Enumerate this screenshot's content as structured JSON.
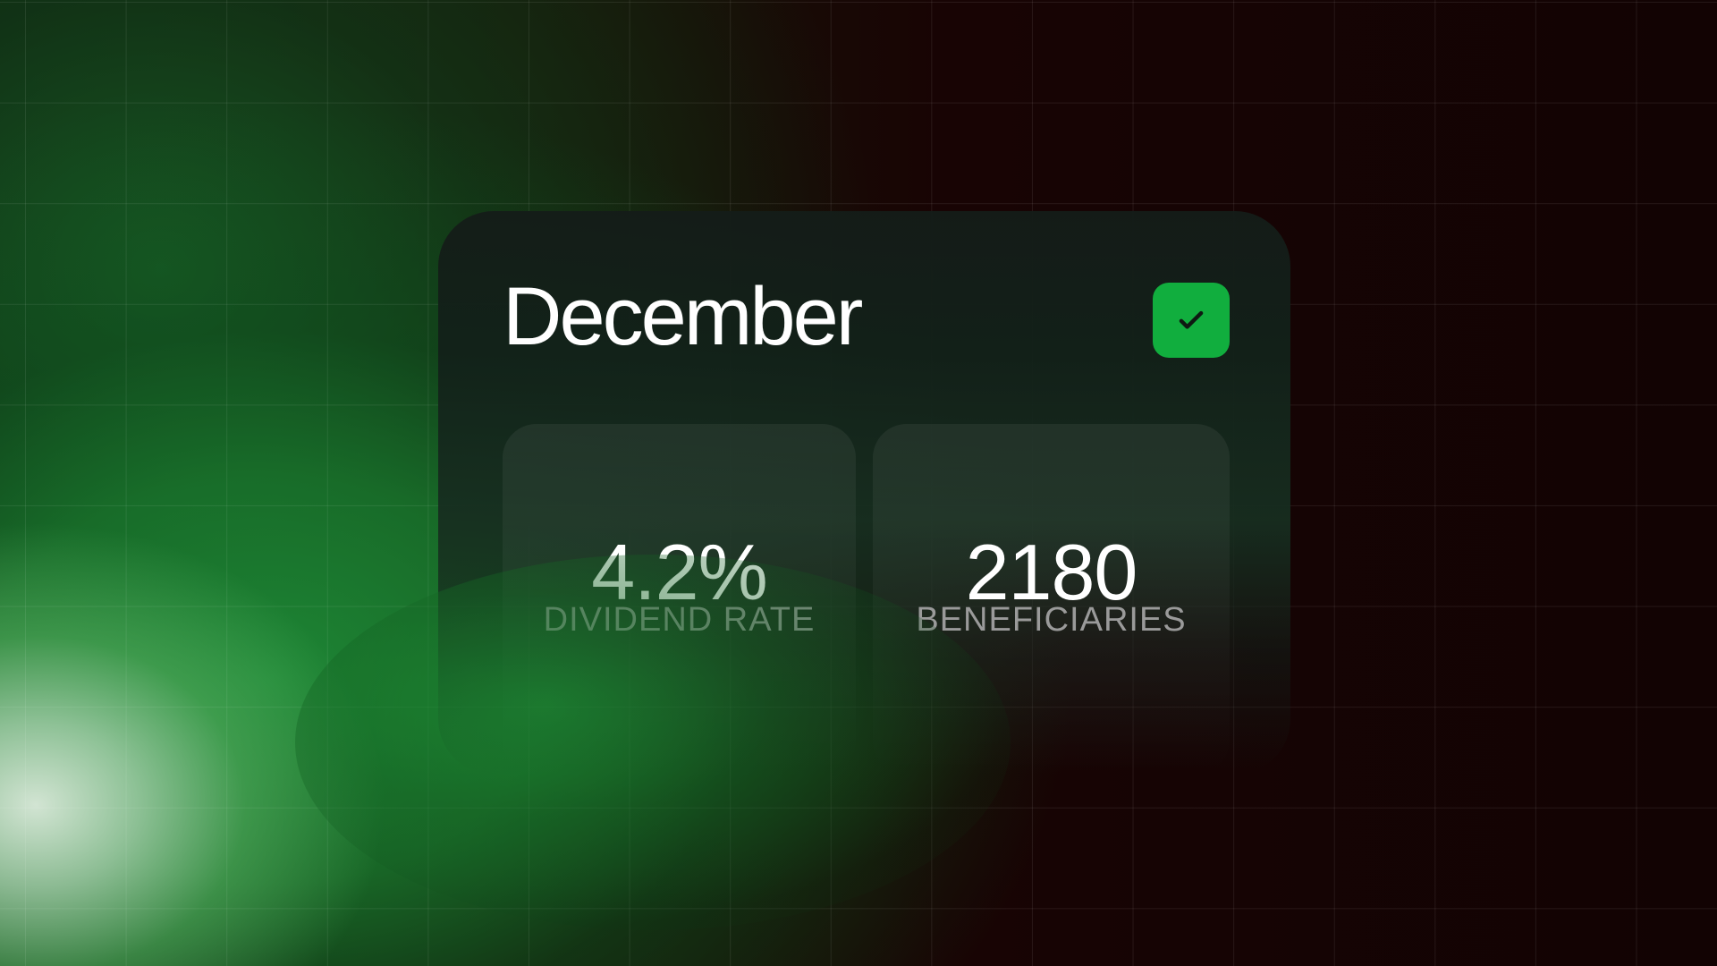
{
  "card": {
    "title": "December",
    "status_icon": "check-icon"
  },
  "stats": [
    {
      "value": "4.2%",
      "label": "DIVIDEND RATE"
    },
    {
      "value": "2180",
      "label": "BENEFICIARIES"
    }
  ],
  "colors": {
    "accent": "#11ae3e",
    "background": "#120303",
    "card_top": "#141c18",
    "card_green": "#172e20",
    "label_gray": "#9a9a9a"
  }
}
